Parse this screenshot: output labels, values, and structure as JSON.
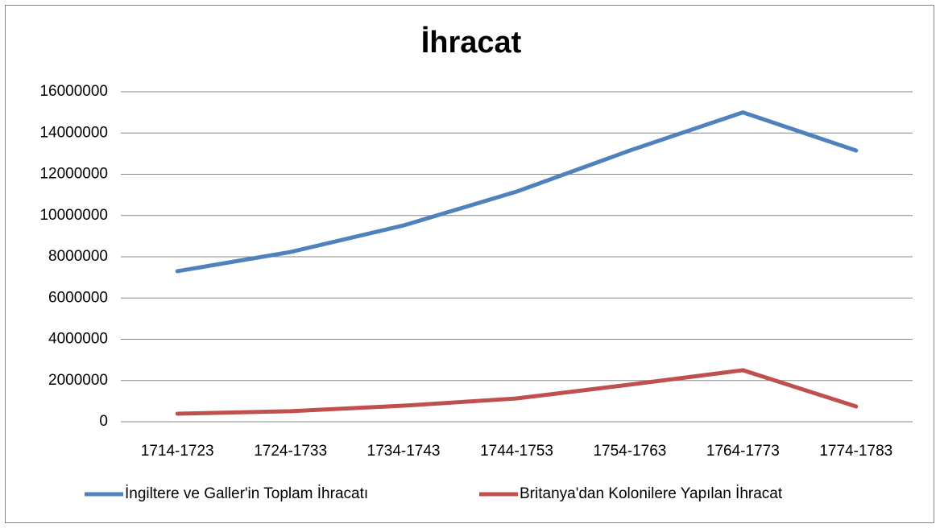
{
  "chart_data": {
    "type": "line",
    "title": "İhracat",
    "categories": [
      "1714-1723",
      "1724-1733",
      "1734-1743",
      "1744-1753",
      "1754-1763",
      "1764-1773",
      "1774-1783"
    ],
    "series": [
      {
        "name": "İngiltere ve Galler'in Toplam İhracatı",
        "color": "#4f81bd",
        "values": [
          7300000,
          8230000,
          9520000,
          11160000,
          13150000,
          15000000,
          13150000
        ]
      },
      {
        "name": "Britanya'dan Kolonilere Yapılan İhracat",
        "color": "#c0504d",
        "values": [
          390000,
          510000,
          780000,
          1130000,
          1800000,
          2500000,
          740000
        ]
      }
    ],
    "ylim": [
      0,
      16000000
    ],
    "yticks": [
      0,
      2000000,
      4000000,
      6000000,
      8000000,
      10000000,
      12000000,
      14000000,
      16000000
    ],
    "grid": true,
    "legend": "bottom"
  }
}
